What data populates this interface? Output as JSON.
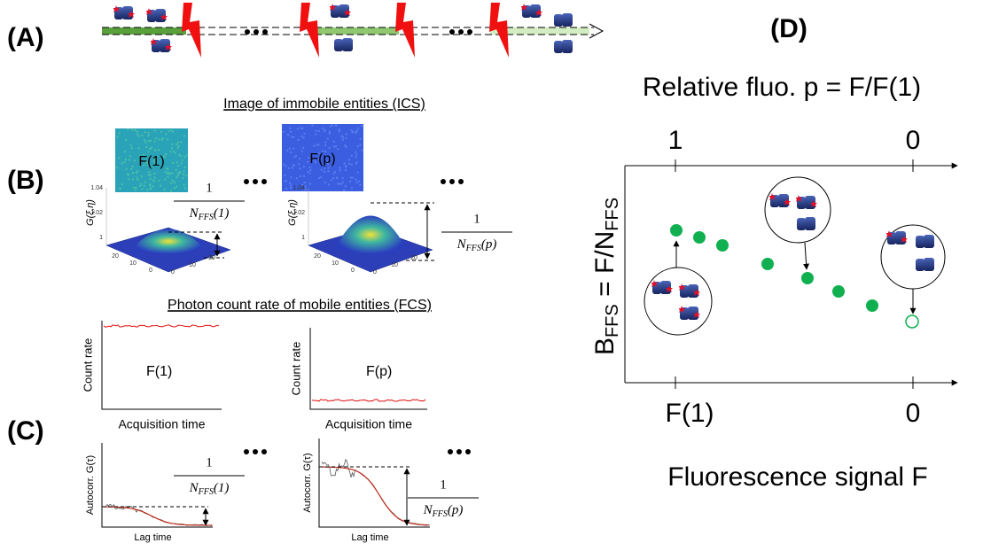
{
  "panels": {
    "a": {
      "label": "(A)"
    },
    "b": {
      "label": "(B)",
      "title": "Image of immobile entities (ICS)",
      "plots": [
        {
          "image_label": "F(1)",
          "z_axis": "G(ξ,η)",
          "z_ticks": [
            "1.04",
            "1.02",
            "1"
          ],
          "xy_ticks": [
            "20",
            "10",
            "0",
            "0",
            "10",
            "20"
          ],
          "fraction": {
            "numerator": "1",
            "symbol": "N",
            "subscript": "FFS",
            "argument": "(1)"
          }
        },
        {
          "image_label": "F(p)",
          "z_axis": "G(ξ,η)",
          "z_ticks": [
            "1.04",
            "1.02",
            "1"
          ],
          "xy_ticks": [
            "20",
            "10",
            "0",
            "0",
            "10",
            "20"
          ],
          "fraction": {
            "numerator": "1",
            "symbol": "N",
            "subscript": "FFS",
            "argument": "(p)"
          }
        }
      ]
    },
    "c": {
      "label": "(C)",
      "title": "Photon count rate of mobile entities (FCS)",
      "plots": [
        {
          "y_axis": "Count rate",
          "x_axis": "Acquisition time",
          "label": "F(1)",
          "autocorr_y_axis": "Autocorr. G(τ)",
          "autocorr_x_axis": "Lag time",
          "fraction": {
            "numerator": "1",
            "symbol": "N",
            "subscript": "FFS",
            "argument": "(1)"
          }
        },
        {
          "y_axis": "Count rate",
          "x_axis": "Acquisition time",
          "label": "F(p)",
          "autocorr_y_axis": "Autocorr. G(τ)",
          "autocorr_x_axis": "Lag time",
          "fraction": {
            "numerator": "1",
            "symbol": "N",
            "subscript": "FFS",
            "argument": "(p)"
          }
        }
      ]
    },
    "d": {
      "label": "(D)",
      "top_axis_title": "Relative fluo. p = F/F(1)",
      "top_ticks": [
        "1",
        "0"
      ],
      "y_axis": {
        "main": "B",
        "main_sub": "FFS",
        "rest": " = F/N",
        "rest_sub": "FFS"
      },
      "bottom_ticks": [
        "F(1)",
        "0"
      ],
      "bottom_axis_title": "Fluorescence signal F"
    }
  }
}
